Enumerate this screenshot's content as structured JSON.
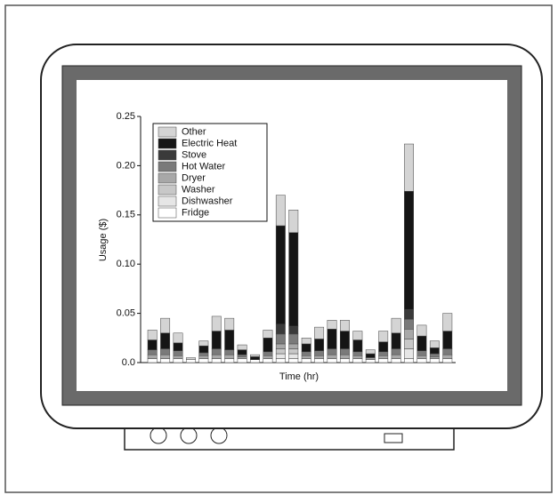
{
  "chart_data": {
    "type": "stacked_bar",
    "x_label": "Time (hr)",
    "y_label": "Usage ($)",
    "categories": [
      null,
      null,
      null,
      null,
      null,
      null,
      null,
      null,
      null,
      null,
      null,
      null,
      null,
      null,
      null,
      null,
      null,
      null,
      null,
      null,
      null,
      null,
      null,
      null
    ],
    "ylim": [
      0,
      0.25
    ],
    "yticks": [
      {
        "value": 0,
        "label": "0.0"
      },
      0.05,
      {
        "value": 0.1,
        "label": "0.10"
      },
      0.15,
      {
        "value": 0.2,
        "label": "0.20"
      },
      0.25
    ],
    "legend_position": "upper left",
    "series": [
      {
        "name": "Fridge",
        "color": "#ffffff",
        "values": [
          0.004,
          0.004,
          0.004,
          0.003,
          0.004,
          0.004,
          0.004,
          0.004,
          0.003,
          0.004,
          0.004,
          0.004,
          0.004,
          0.004,
          0.004,
          0.004,
          0.004,
          0.003,
          0.004,
          0.004,
          0.004,
          0.004,
          0.004,
          0.004
        ]
      },
      {
        "name": "Dishwasher",
        "color": "#e6e6e6",
        "values": [
          0,
          0,
          0,
          0,
          0,
          0,
          0,
          0,
          0,
          0,
          0.005,
          0.005,
          0,
          0,
          0,
          0,
          0,
          0,
          0,
          0,
          0.01,
          0,
          0,
          0
        ]
      },
      {
        "name": "Washer",
        "color": "#c8c8c8",
        "values": [
          0,
          0,
          0,
          0,
          0,
          0,
          0,
          0,
          0,
          0,
          0.005,
          0.005,
          0,
          0,
          0,
          0,
          0,
          0,
          0,
          0,
          0.01,
          0,
          0,
          0
        ]
      },
      {
        "name": "Dryer",
        "color": "#a8a8a8",
        "values": [
          0.004,
          0.004,
          0.003,
          0,
          0.003,
          0.004,
          0.004,
          0.002,
          0,
          0.003,
          0.005,
          0.005,
          0.003,
          0.003,
          0.004,
          0.004,
          0.003,
          0.002,
          0.003,
          0.004,
          0.01,
          0.003,
          0.002,
          0.004
        ]
      },
      {
        "name": "Hot Water",
        "color": "#7a7a7a",
        "values": [
          0.005,
          0.006,
          0.005,
          0,
          0.003,
          0.006,
          0.005,
          0.002,
          0,
          0.004,
          0.01,
          0.01,
          0.004,
          0.005,
          0.006,
          0.006,
          0.004,
          0,
          0.004,
          0.006,
          0.01,
          0.005,
          0.003,
          0.006
        ]
      },
      {
        "name": "Stove",
        "color": "#3a3a3a",
        "values": [
          0,
          0,
          0,
          0,
          0,
          0,
          0,
          0,
          0,
          0,
          0.01,
          0.008,
          0,
          0,
          0,
          0,
          0,
          0,
          0,
          0,
          0.01,
          0,
          0,
          0
        ]
      },
      {
        "name": "Electric Heat",
        "color": "#151515",
        "values": [
          0.01,
          0.016,
          0.008,
          0,
          0.007,
          0.018,
          0.02,
          0.005,
          0.003,
          0.014,
          0.1,
          0.095,
          0.008,
          0.012,
          0.02,
          0.018,
          0.012,
          0.004,
          0.01,
          0.016,
          0.12,
          0.015,
          0.006,
          0.018
        ]
      },
      {
        "name": "Other",
        "color": "#d4d4d4",
        "values": [
          0.01,
          0.015,
          0.01,
          0.002,
          0.005,
          0.015,
          0.012,
          0.005,
          0.002,
          0.008,
          0.031,
          0.023,
          0.006,
          0.012,
          0.009,
          0.011,
          0.009,
          0.004,
          0.011,
          0.015,
          0.048,
          0.011,
          0.007,
          0.018
        ]
      }
    ]
  }
}
